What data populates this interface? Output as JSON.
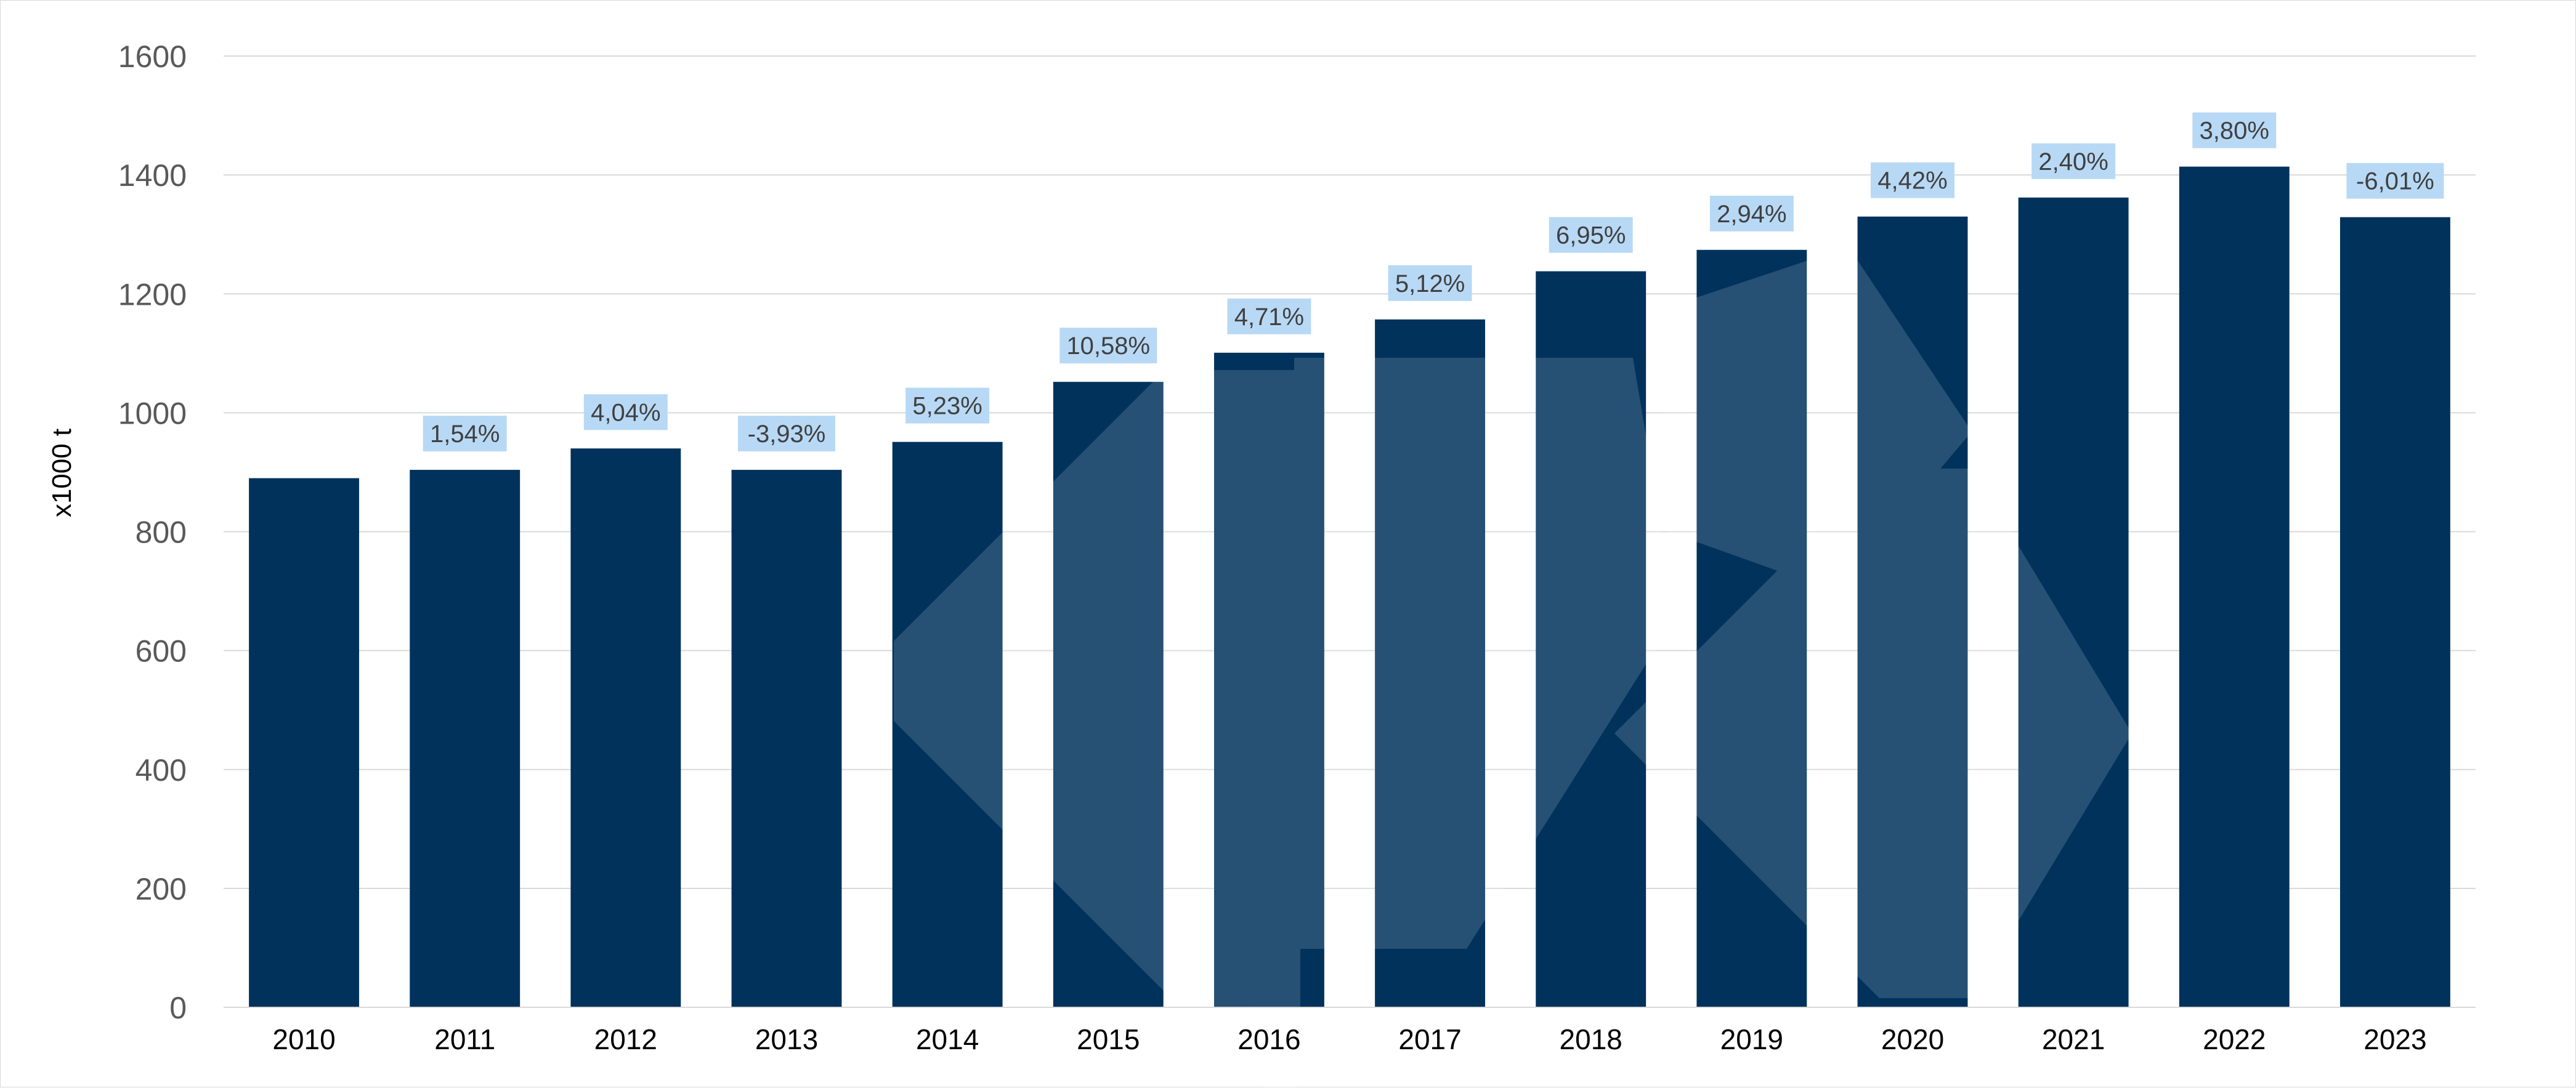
{
  "chart_data": {
    "type": "bar",
    "title": "",
    "ylabel": "x1000 t",
    "xlabel": "",
    "ylim": [
      0,
      1600
    ],
    "yticks": [
      0,
      200,
      400,
      600,
      800,
      1000,
      1200,
      1400,
      1600
    ],
    "grid": true,
    "legend": "none",
    "categories": [
      "2010",
      "2011",
      "2012",
      "2013",
      "2014",
      "2015",
      "2016",
      "2017",
      "2018",
      "2019",
      "2020",
      "2021",
      "2022",
      "2023"
    ],
    "values": [
      890,
      904,
      940,
      904,
      951,
      1052,
      1101,
      1157,
      1238,
      1274,
      1330,
      1362,
      1414,
      1329
    ],
    "data_labels": [
      "",
      "1,54%",
      "4,04%",
      "-3,93%",
      "5,23%",
      "10,58%",
      "4,71%",
      "5,12%",
      "6,95%",
      "2,94%",
      "4,42%",
      "2,40%",
      "3,80%",
      "-6,01%"
    ],
    "colors": {
      "bar": "#00325c",
      "label_bg": "#b8d9f5",
      "label_text": "#404040",
      "grid": "#d9d9d9",
      "watermark": "#ffffff"
    }
  }
}
